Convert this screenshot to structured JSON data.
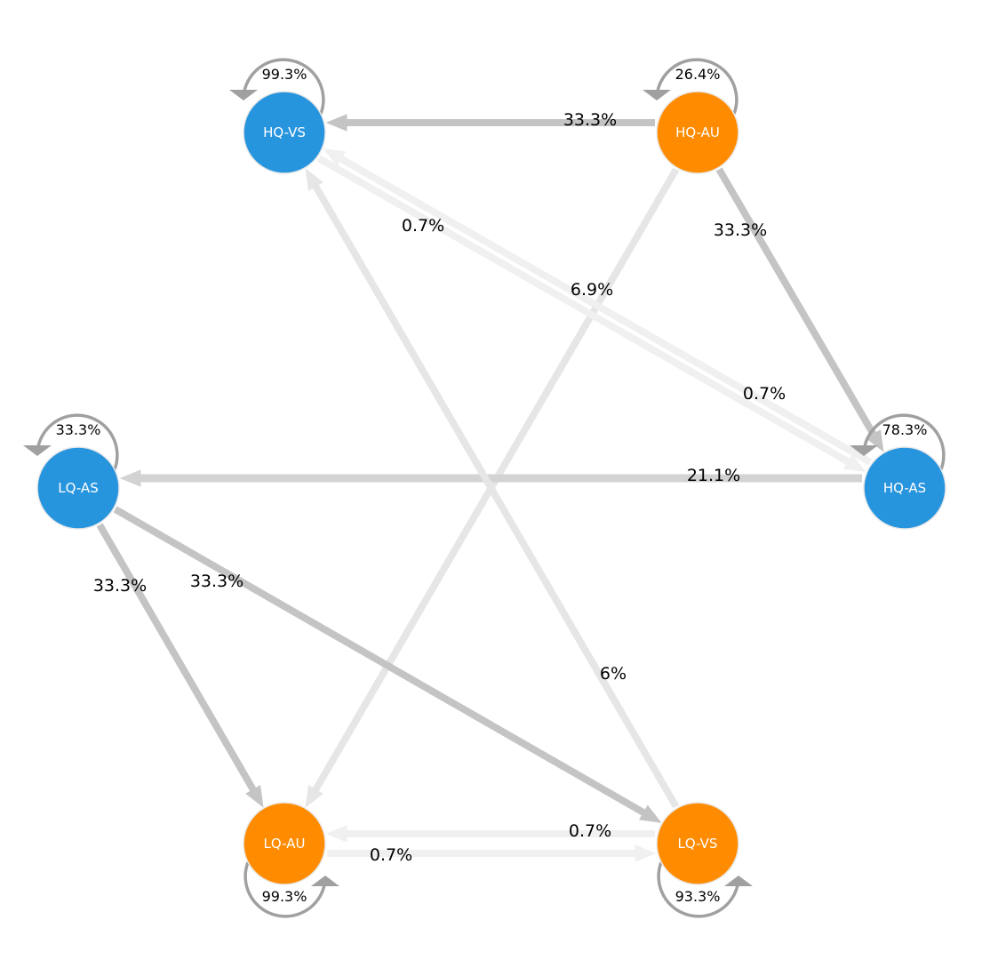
{
  "colors": {
    "blue": "#2794DE",
    "orange": "#FF8C00",
    "node_stroke": "#E8E8E8",
    "loop": "#A0A0A0",
    "edge_strong": "#C4C4C4",
    "edge_medium": "#D3D3D3",
    "edge_light": "#E6E6E6",
    "edge_faint": "#F0F0F0"
  },
  "nodes": [
    {
      "id": "HQ-VS",
      "label": "HQ-VS",
      "color": "blue",
      "self_loop": "99.3%"
    },
    {
      "id": "HQ-AU",
      "label": "HQ-AU",
      "color": "orange",
      "self_loop": "26.4%"
    },
    {
      "id": "LQ-AS",
      "label": "LQ-AS",
      "color": "blue",
      "self_loop": "33.3%"
    },
    {
      "id": "HQ-AS",
      "label": "HQ-AS",
      "color": "blue",
      "self_loop": "78.3%"
    },
    {
      "id": "LQ-AU",
      "label": "LQ-AU",
      "color": "orange",
      "self_loop": "99.3%"
    },
    {
      "id": "LQ-VS",
      "label": "LQ-VS",
      "color": "orange",
      "self_loop": "93.3%"
    }
  ],
  "edges": [
    {
      "from": "HQ-AU",
      "to": "HQ-VS",
      "label": "33.3%",
      "shade": "edge_strong"
    },
    {
      "from": "HQ-AU",
      "to": "HQ-AS",
      "label": "33.3%",
      "shade": "edge_strong"
    },
    {
      "from": "HQ-AU",
      "to": "LQ-AU",
      "label": "6.9%",
      "shade": "edge_light"
    },
    {
      "from": "HQ-VS",
      "to": "HQ-AS",
      "label": "0.7%",
      "shade": "edge_faint"
    },
    {
      "from": "HQ-AS",
      "to": "HQ-VS",
      "label": "0.7%",
      "shade": "edge_faint"
    },
    {
      "from": "HQ-AS",
      "to": "LQ-AS",
      "label": "21.1%",
      "shade": "edge_medium"
    },
    {
      "from": "LQ-VS",
      "to": "HQ-VS",
      "label": "6%",
      "shade": "edge_light"
    },
    {
      "from": "LQ-AS",
      "to": "LQ-AU",
      "label": "33.3%",
      "shade": "edge_strong"
    },
    {
      "from": "LQ-AS",
      "to": "LQ-VS",
      "label": "33.3%",
      "shade": "edge_strong"
    },
    {
      "from": "LQ-VS",
      "to": "LQ-AU",
      "label": "0.7%",
      "shade": "edge_faint"
    },
    {
      "from": "LQ-AU",
      "to": "LQ-VS",
      "label": "0.7%",
      "shade": "edge_faint"
    }
  ]
}
